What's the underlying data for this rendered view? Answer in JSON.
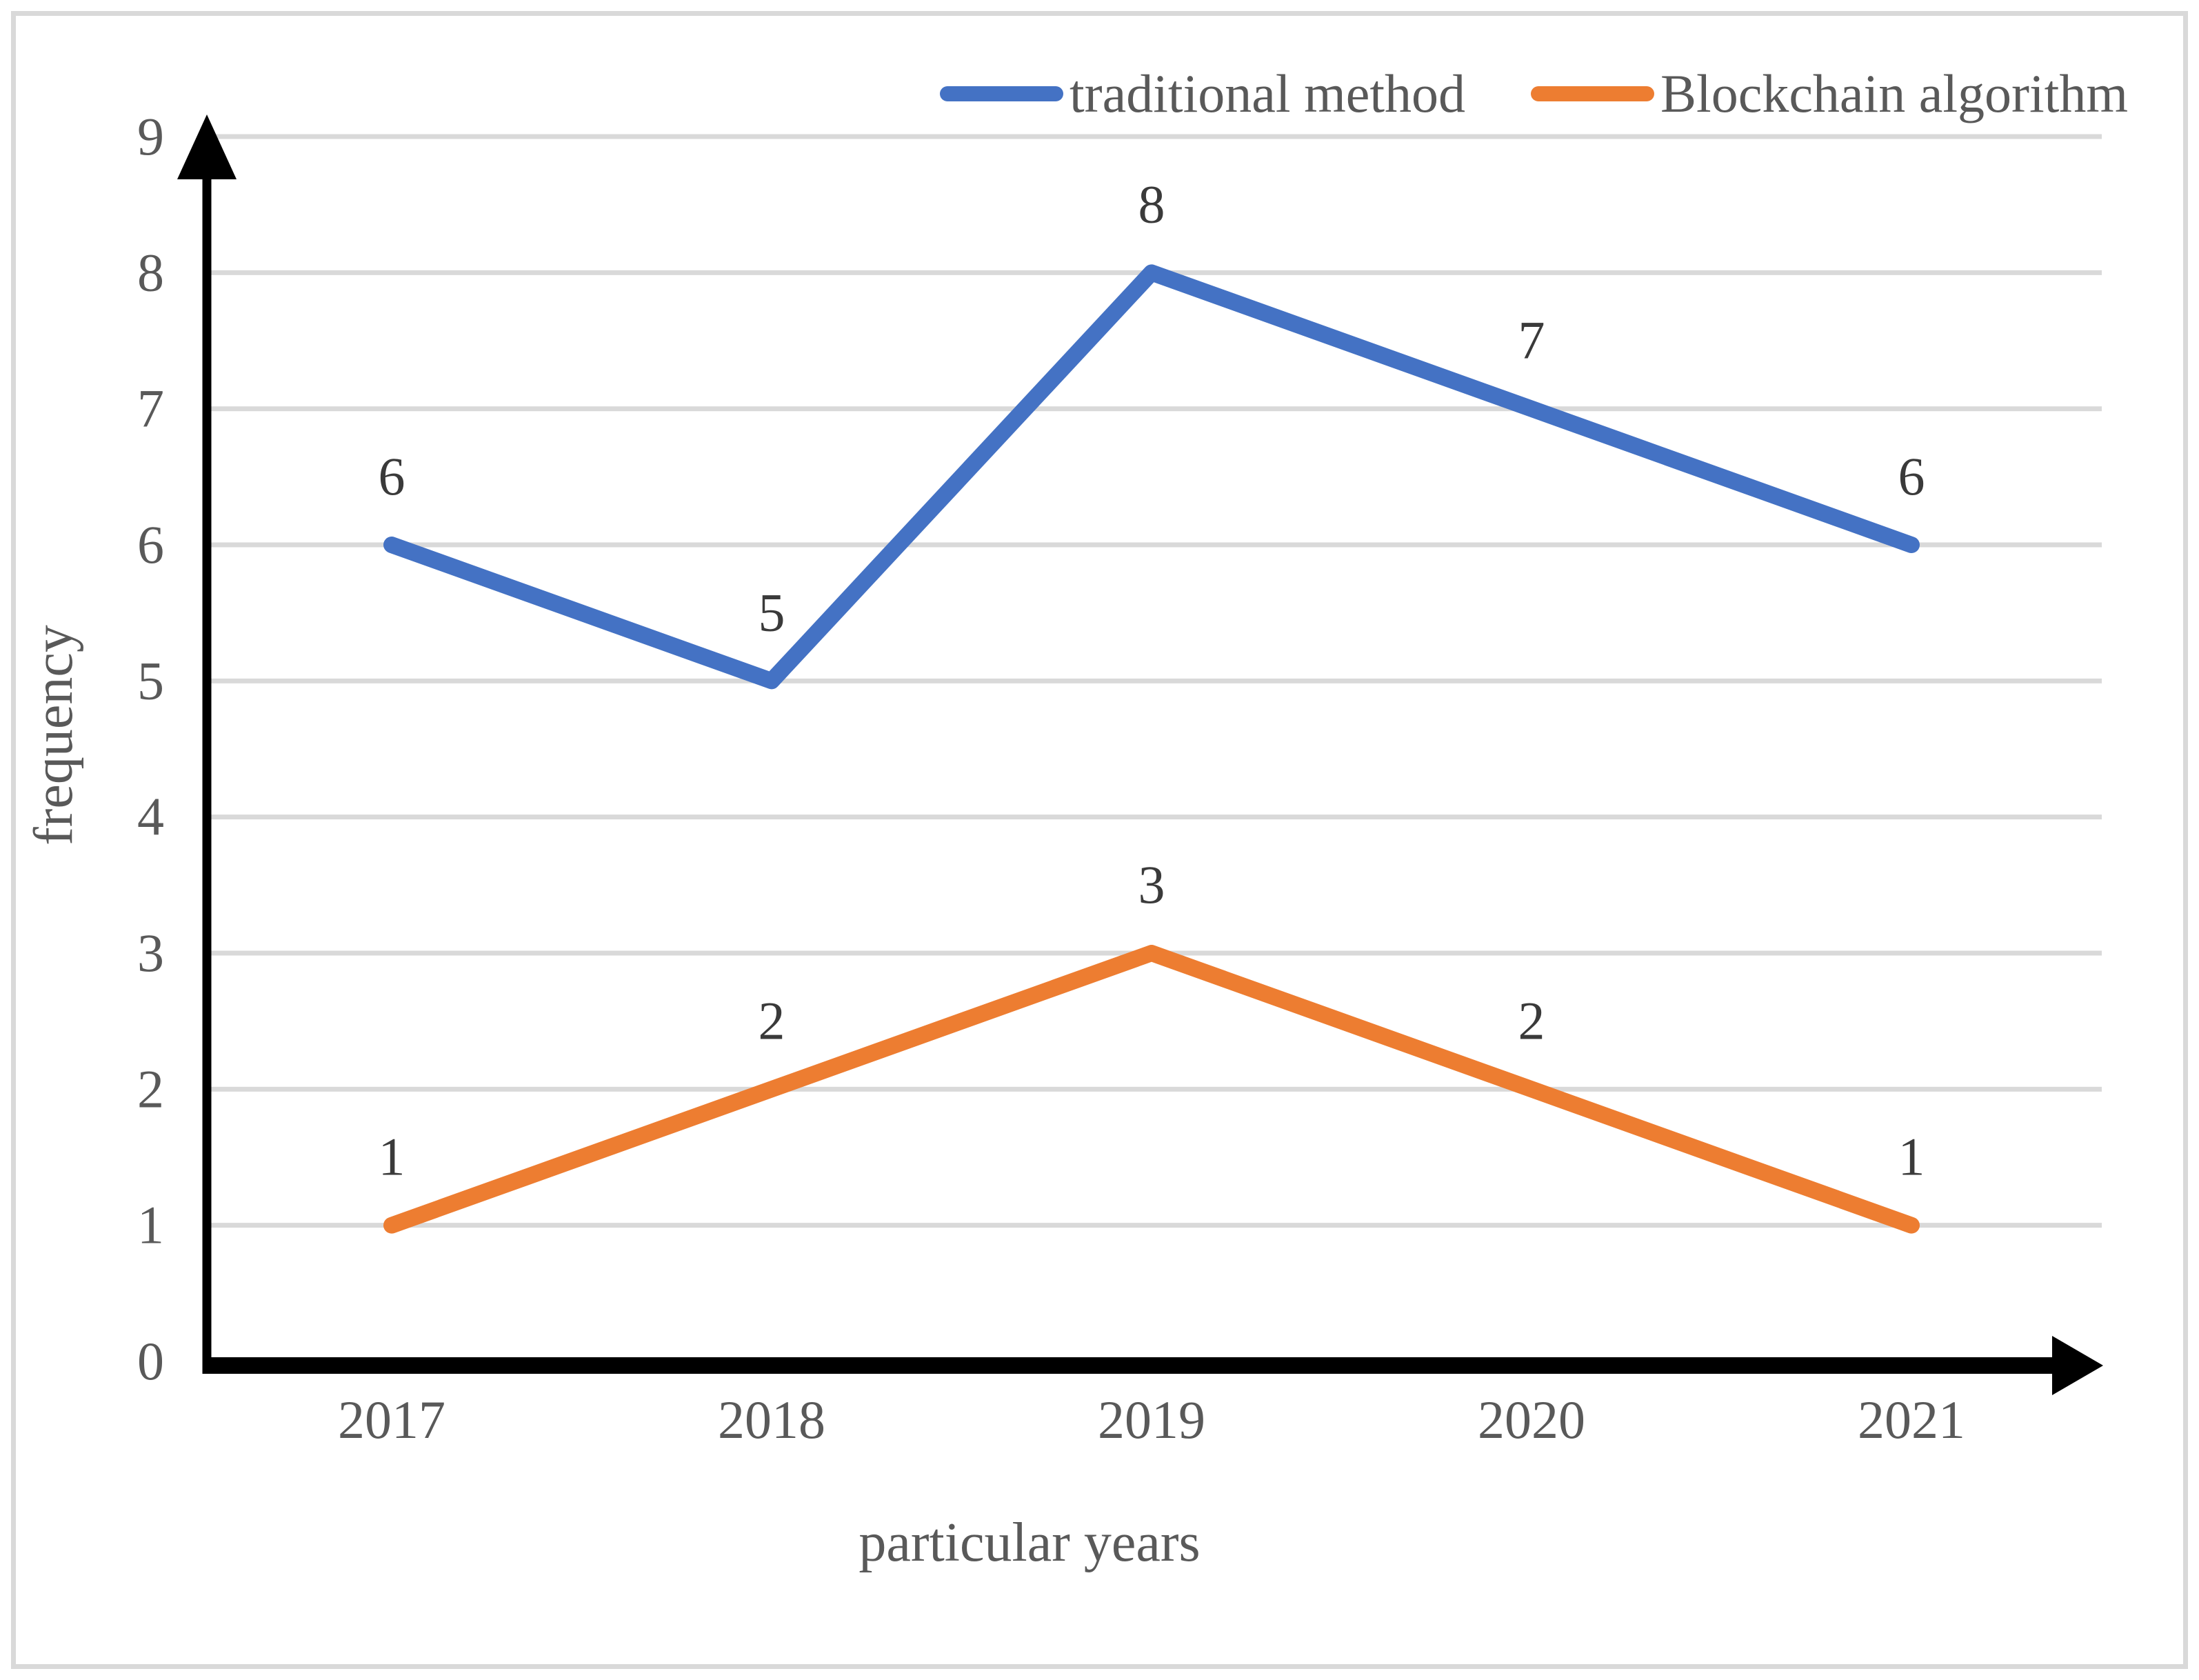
{
  "chart_data": {
    "type": "line",
    "categories": [
      "2017",
      "2018",
      "2019",
      "2020",
      "2021"
    ],
    "series": [
      {
        "name": "traditional method",
        "color": "#4472C4",
        "values": [
          6,
          5,
          8,
          7,
          6
        ]
      },
      {
        "name": "Blockchain algorithm",
        "color": "#ED7D31",
        "values": [
          1,
          2,
          3,
          2,
          1
        ]
      }
    ],
    "title": "",
    "xlabel": "particular years",
    "ylabel": "frequency",
    "ylim": [
      0,
      9
    ],
    "ytick_step": 1,
    "yticks": [
      "0",
      "1",
      "2",
      "3",
      "4",
      "5",
      "6",
      "7",
      "8",
      "9"
    ],
    "grid": true,
    "gridlines_at": [
      1,
      2,
      3,
      4,
      5,
      6,
      7,
      8,
      9
    ],
    "data_labels": true,
    "legend_position": "top"
  },
  "colors": {
    "background": "#FFFFFF",
    "frame_border": "#D9D9D9",
    "gridline": "#D9D9D9",
    "axis_line": "#000000",
    "tick_text": "#595959",
    "data_label_text": "#3A3A3A",
    "axis_title_text": "#595959",
    "series_blue": "#4472C4",
    "series_orange": "#ED7D31"
  }
}
